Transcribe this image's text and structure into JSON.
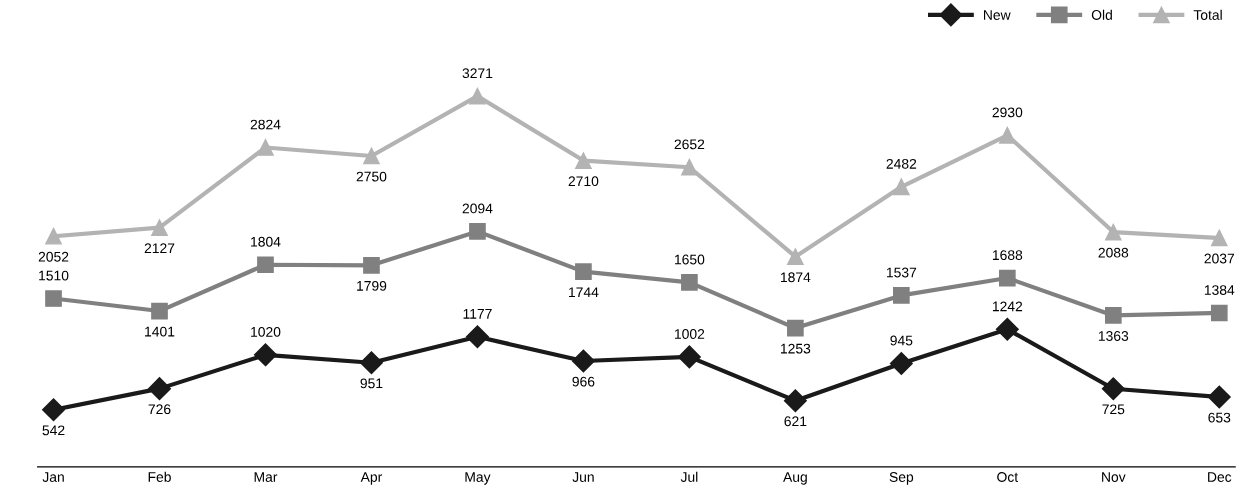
{
  "chart_data": {
    "type": "line",
    "categories": [
      "Jan",
      "Feb",
      "Mar",
      "Apr",
      "May",
      "Jun",
      "Jul",
      "Aug",
      "Sep",
      "Oct",
      "Nov",
      "Dec"
    ],
    "series": [
      {
        "name": "New",
        "color": "#1a1a1a",
        "marker": "diamond",
        "values": [
          542,
          726,
          1020,
          951,
          1177,
          966,
          1002,
          621,
          945,
          1242,
          725,
          653
        ]
      },
      {
        "name": "Old",
        "color": "#808080",
        "marker": "square",
        "values": [
          1510,
          1401,
          1804,
          1799,
          2094,
          1744,
          1650,
          1253,
          1537,
          1688,
          1363,
          1384
        ]
      },
      {
        "name": "Total",
        "color": "#b3b3b3",
        "marker": "triangle",
        "values": [
          2052,
          2127,
          2824,
          2750,
          3271,
          2710,
          2652,
          1874,
          2482,
          2930,
          2088,
          2037
        ]
      }
    ],
    "data_labels": true,
    "legend": "top right",
    "grid": false,
    "tick_labels": "x",
    "line_style": "solid"
  }
}
